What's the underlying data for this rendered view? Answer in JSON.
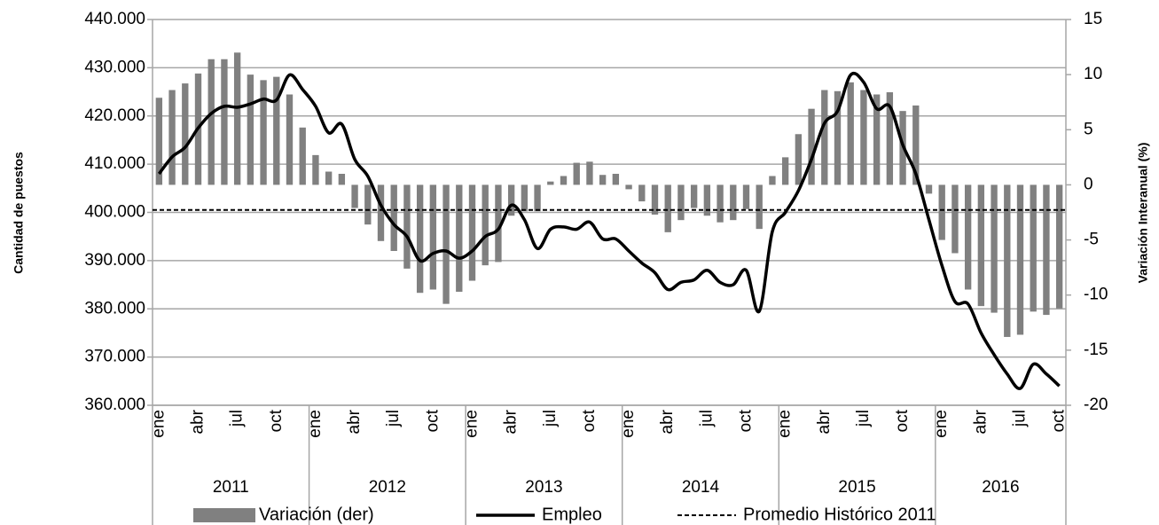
{
  "chart_data": {
    "type": "combo",
    "y_label": "Cantidad de puestos",
    "y2_label": "Variación Interanual (%)",
    "categories": [
      "ene",
      null,
      null,
      "abr",
      null,
      null,
      "jul",
      null,
      null,
      "oct",
      null,
      null,
      "ene",
      null,
      null,
      "abr",
      null,
      null,
      "jul",
      null,
      null,
      "oct",
      null,
      null,
      "ene",
      null,
      null,
      "abr",
      null,
      null,
      "jul",
      null,
      null,
      "oct",
      null,
      null,
      "ene",
      null,
      null,
      "abr",
      null,
      null,
      "jul",
      null,
      null,
      "oct",
      null,
      null,
      "ene",
      null,
      null,
      "abr",
      null,
      null,
      "jul",
      null,
      null,
      "oct",
      null,
      null,
      "ene",
      null,
      null,
      "abr",
      null,
      null,
      "jul",
      null,
      null,
      "oct"
    ],
    "category_groups": [
      "2011",
      "2012",
      "2013",
      "2014",
      "2015",
      "2016"
    ],
    "ylim": [
      360000,
      440000
    ],
    "yticks": [
      {
        "value": 360000,
        "label": "360.000"
      },
      {
        "value": 370000,
        "label": "370.000"
      },
      {
        "value": 380000,
        "label": "380.000"
      },
      {
        "value": 390000,
        "label": "390.000"
      },
      {
        "value": 400000,
        "label": "400.000"
      },
      {
        "value": 410000,
        "label": "410.000"
      },
      {
        "value": 420000,
        "label": "420.000"
      },
      {
        "value": 430000,
        "label": "430.000"
      },
      {
        "value": 440000,
        "label": "440.000"
      }
    ],
    "y2lim": [
      -20,
      15
    ],
    "y2ticks": [
      -20,
      -15,
      -10,
      -5,
      0,
      5,
      10,
      15
    ],
    "grid": true,
    "legend": "bottom",
    "series": [
      {
        "name": "Variación (der)",
        "type": "bar",
        "axis": "y2",
        "color": "#808080",
        "values": [
          7.9,
          8.6,
          9.2,
          10.1,
          11.4,
          11.4,
          12.0,
          10.0,
          9.5,
          9.8,
          8.2,
          5.2,
          2.7,
          1.2,
          1.0,
          -2.1,
          -3.6,
          -5.1,
          -6.0,
          -7.6,
          -9.8,
          -9.5,
          -10.8,
          -9.7,
          -8.7,
          -7.3,
          -7.0,
          -2.8,
          -2.4,
          -2.4,
          0.3,
          0.8,
          2.0,
          2.1,
          0.9,
          1.0,
          -0.4,
          -1.5,
          -2.7,
          -4.3,
          -3.2,
          -2.1,
          -2.8,
          -3.4,
          -3.2,
          -2.2,
          -4.0,
          0.8,
          2.5,
          4.6,
          6.9,
          8.6,
          8.5,
          9.3,
          8.6,
          8.2,
          8.4,
          6.7,
          7.2,
          -0.8,
          -5.0,
          -6.2,
          -9.5,
          -11.0,
          -11.6,
          -13.8,
          -13.6,
          -11.5,
          -11.8,
          -11.2
        ]
      },
      {
        "name": "Empleo",
        "type": "line",
        "axis": "y",
        "color": "#000000",
        "values": [
          408000,
          411500,
          413500,
          417500,
          420500,
          422000,
          421800,
          422500,
          423500,
          423300,
          428500,
          425500,
          422000,
          416500,
          418300,
          411000,
          407500,
          401500,
          397500,
          395000,
          390000,
          391500,
          392000,
          390500,
          392000,
          395000,
          396500,
          401500,
          398500,
          392500,
          396500,
          397000,
          396500,
          398000,
          394500,
          394500,
          392000,
          389500,
          387500,
          384000,
          385500,
          386000,
          388000,
          385500,
          385000,
          388000,
          379500,
          396000,
          400000,
          404500,
          411000,
          418500,
          421000,
          428500,
          427000,
          421500,
          422000,
          414000,
          408000,
          398500,
          389000,
          381500,
          381000,
          375000,
          370500,
          366500,
          363500,
          368500,
          366500,
          364000
        ]
      },
      {
        "name": "Promedio Histórico 2011",
        "type": "hline",
        "axis": "y",
        "color": "#000000",
        "dashed": true,
        "value": 400500
      }
    ]
  }
}
